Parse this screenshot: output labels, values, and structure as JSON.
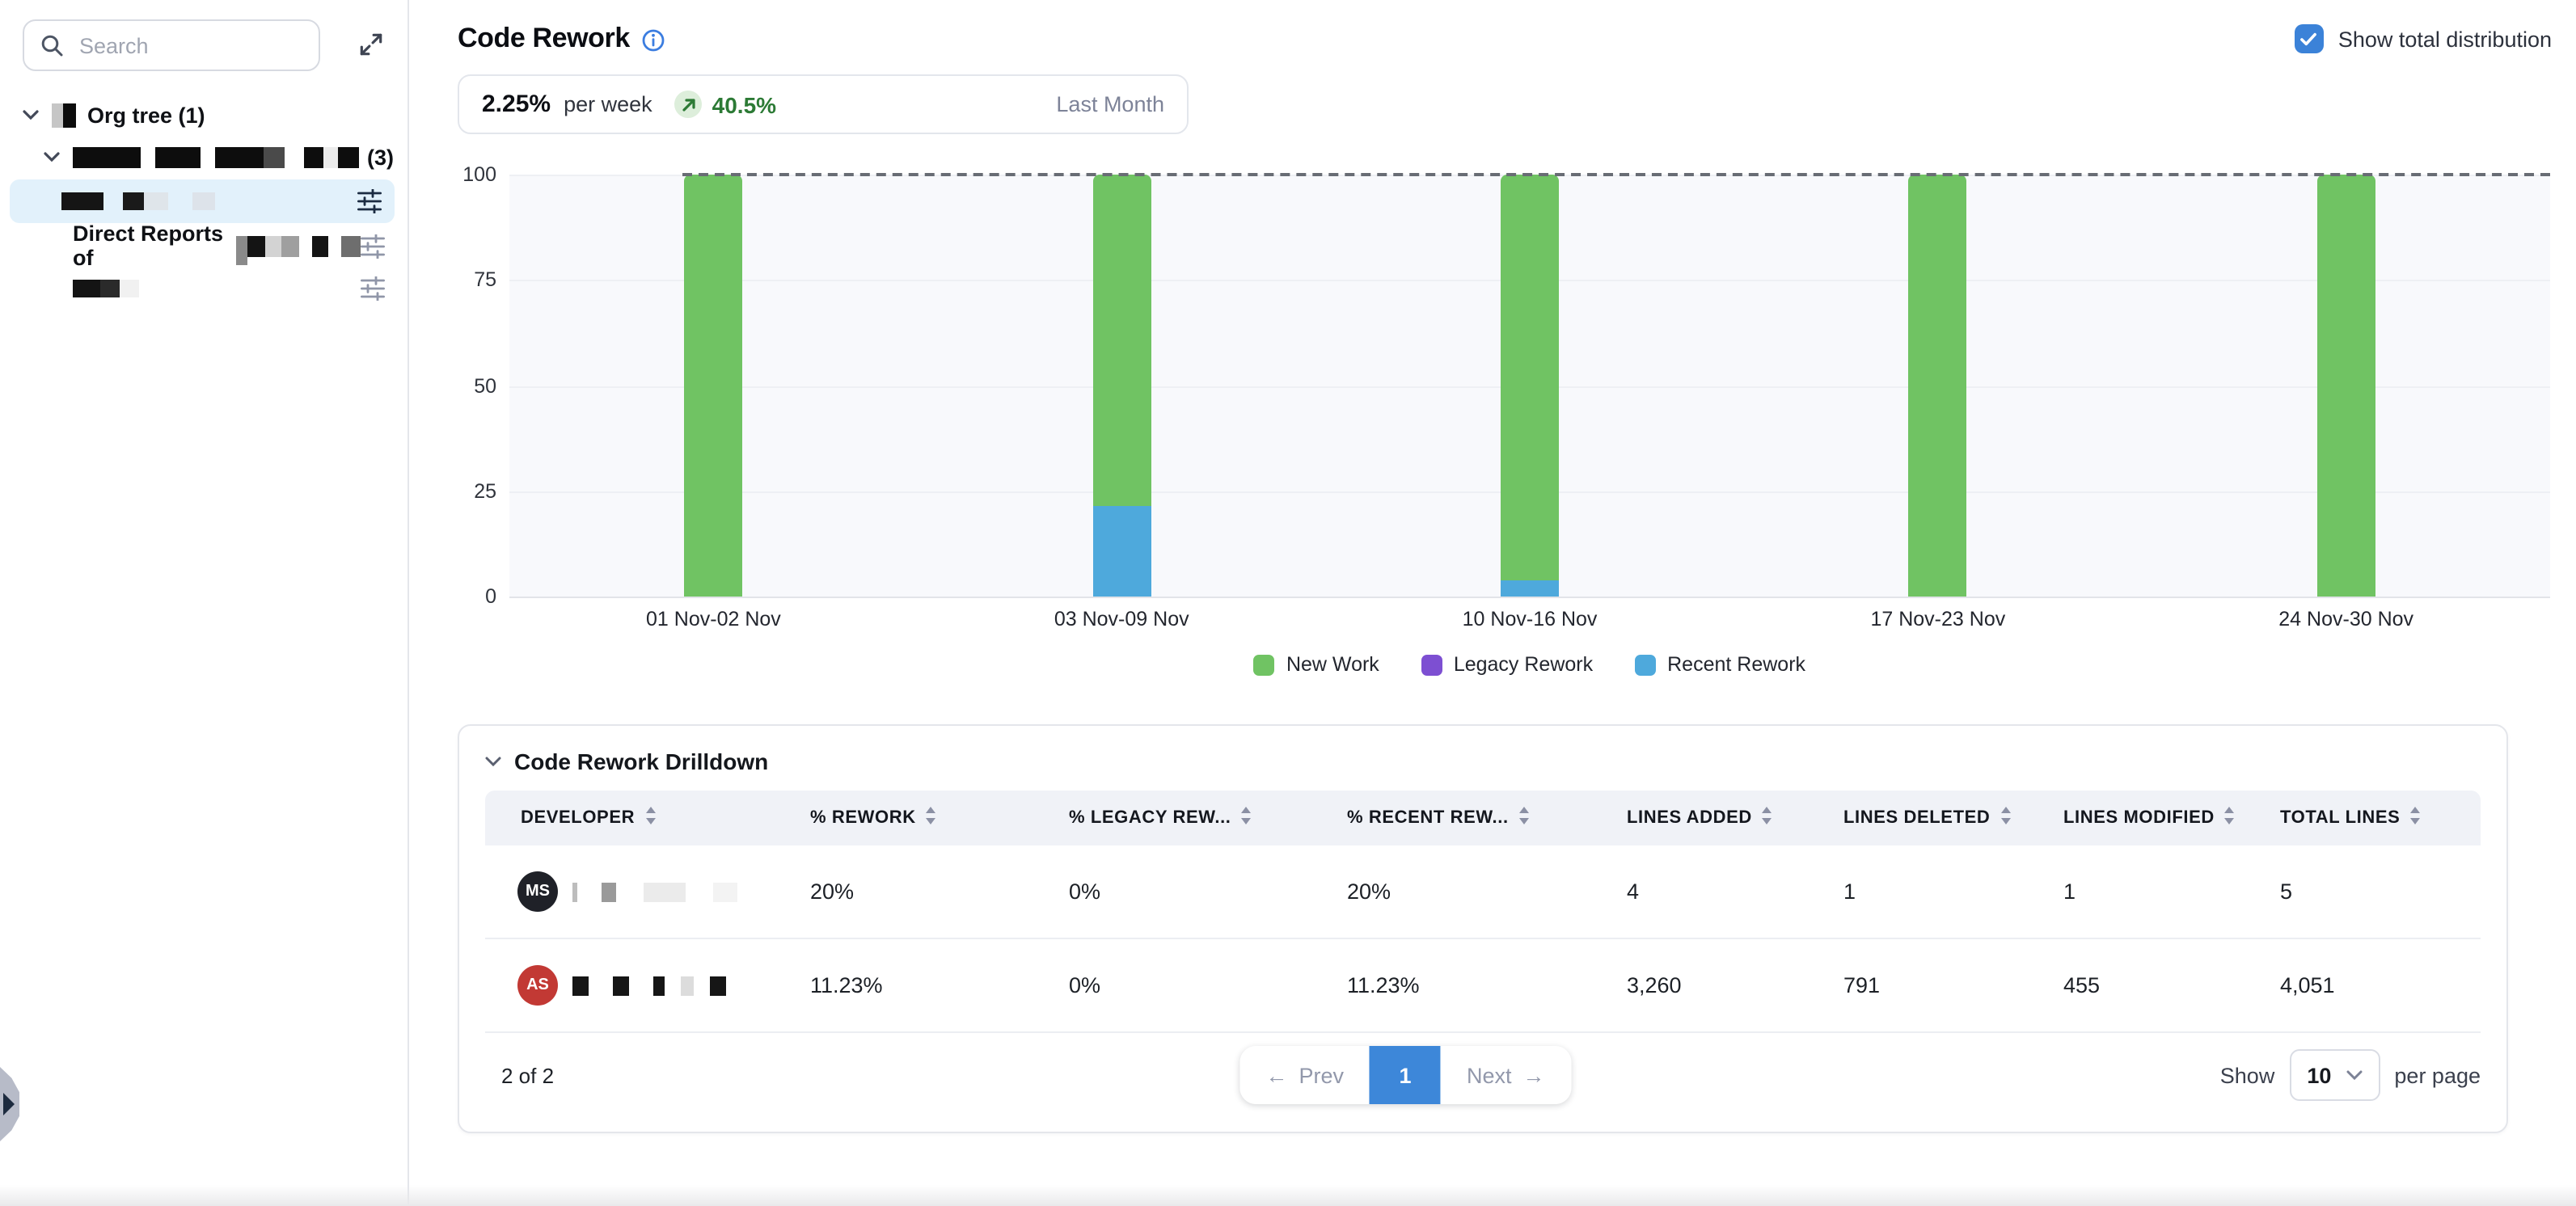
{
  "sidebar": {
    "search_placeholder": "Search",
    "tree": {
      "root_label": "Org tree (1)",
      "group_count_label": "(3)",
      "direct_reports_label": "Direct Reports of"
    }
  },
  "header": {
    "title": "Code Rework",
    "show_total_label": "Show total distribution",
    "show_total_checked": true
  },
  "stat": {
    "value": "2.25%",
    "unit": "per week",
    "change": "40.5%",
    "period": "Last Month"
  },
  "chart_data": {
    "type": "bar",
    "stacked": true,
    "title": "Code Rework weekly distribution",
    "categories": [
      "01 Nov-02 Nov",
      "03 Nov-09 Nov",
      "10 Nov-16 Nov",
      "17 Nov-23 Nov",
      "24 Nov-30 Nov"
    ],
    "series": [
      {
        "name": "New Work",
        "color": "#70c363",
        "values": [
          100,
          78.4,
          96.2,
          100,
          100
        ]
      },
      {
        "name": "Legacy Rework",
        "color": "#7d4fd2",
        "values": [
          0,
          0,
          0,
          0,
          0
        ]
      },
      {
        "name": "Recent Rework",
        "color": "#4ea9dc",
        "values": [
          0,
          21.6,
          3.8,
          0,
          0
        ]
      }
    ],
    "xlabel": "",
    "ylabel": "",
    "yticks": [
      0,
      25,
      50,
      75,
      100
    ],
    "ylim": [
      0,
      100
    ],
    "total_line": 100,
    "grid": true,
    "legend_position": "bottom"
  },
  "drilldown": {
    "title": "Code Rework Drilldown",
    "columns": [
      "DEVELOPER",
      "% REWORK",
      "% LEGACY REW...",
      "% RECENT REW...",
      "LINES ADDED",
      "LINES DELETED",
      "LINES MODIFIED",
      "TOTAL LINES"
    ],
    "rows": [
      {
        "avatar_initials": "MS",
        "avatar_color": "#1f2128",
        "rework": "20%",
        "legacy_rework": "0%",
        "recent_rework": "20%",
        "lines_added": "4",
        "lines_deleted": "1",
        "lines_modified": "1",
        "total_lines": "5"
      },
      {
        "avatar_initials": "AS",
        "avatar_color": "#c23934",
        "rework": "11.23%",
        "legacy_rework": "0%",
        "recent_rework": "11.23%",
        "lines_added": "3,260",
        "lines_deleted": "791",
        "lines_modified": "455",
        "total_lines": "4,051"
      }
    ],
    "footer": {
      "count": "2 of 2",
      "prev_label": "Prev",
      "page": "1",
      "next_label": "Next",
      "show_label": "Show",
      "page_size": "10",
      "per_page_label": "per page"
    }
  },
  "colors": {
    "accent_blue": "#3b82d8",
    "pagination_active": "#3d87d9",
    "trend_green": "#2c7a35",
    "selected_row_bg": "#e2f1fb"
  }
}
